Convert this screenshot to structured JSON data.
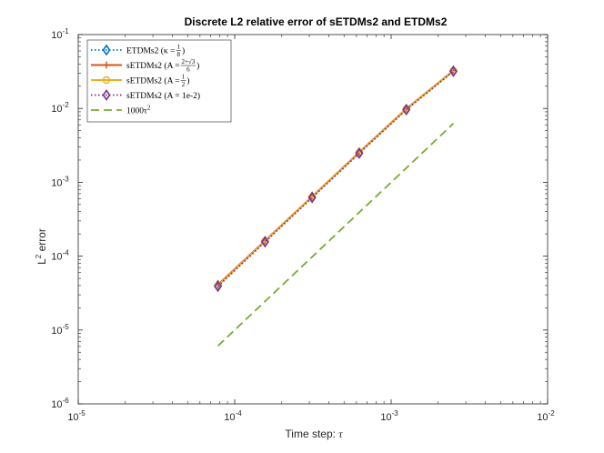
{
  "chart_data": {
    "type": "line",
    "title": "Discrete L2 relative error of sETDMs2 and ETDMs2",
    "xlabel": "Time step: τ",
    "ylabel": "L2 error",
    "xscale": "log",
    "yscale": "log",
    "xlim": [
      1e-05,
      0.01
    ],
    "ylim": [
      1e-06,
      0.1
    ],
    "x_ticks": [
      {
        "base": "10",
        "exp": "-5"
      },
      {
        "base": "10",
        "exp": "-4"
      },
      {
        "base": "10",
        "exp": "-3"
      },
      {
        "base": "10",
        "exp": "-2"
      }
    ],
    "y_ticks": [
      {
        "base": "10",
        "exp": "-6"
      },
      {
        "base": "10",
        "exp": "-5"
      },
      {
        "base": "10",
        "exp": "-4"
      },
      {
        "base": "10",
        "exp": "-3"
      },
      {
        "base": "10",
        "exp": "-2"
      },
      {
        "base": "10",
        "exp": "-1"
      }
    ],
    "grid": false,
    "legend_position": "top-left",
    "x": [
      7.8125e-05,
      0.00015625,
      0.0003125,
      0.000625,
      0.00125,
      0.0025
    ],
    "series": [
      {
        "name": "ETDMs2 (κ = 1/8)",
        "values": [
          4e-05,
          0.000158,
          0.00063,
          0.0025,
          0.0097,
          0.032
        ],
        "color": "#0072BD",
        "dash": "dotted",
        "marker": "diamond"
      },
      {
        "name": "sETDMs2 (A = (2+√3)/6)",
        "values": [
          4.1e-05,
          0.000162,
          0.00064,
          0.00255,
          0.0099,
          0.0325
        ],
        "color": "#D95319",
        "dash": "solid",
        "marker": "plus"
      },
      {
        "name": "sETDMs2 (A = 1/2)",
        "values": [
          4e-05,
          0.00016,
          0.000635,
          0.00252,
          0.0098,
          0.0322
        ],
        "color": "#EDB120",
        "dash": "solid",
        "marker": "circle"
      },
      {
        "name": "sETDMs2 (A = 1e-2)",
        "values": [
          3.9e-05,
          0.000156,
          0.00062,
          0.00247,
          0.0096,
          0.0318
        ],
        "color": "#7E2F8E",
        "dash": "dotted",
        "marker": "diamond"
      },
      {
        "name": "1000τ²",
        "values": [
          6.1e-06,
          2.44e-05,
          9.77e-05,
          0.000391,
          0.00156,
          0.00625
        ],
        "color": "#77AC30",
        "dash": "dashed",
        "marker": "none"
      }
    ],
    "legend": [
      {
        "main": "ETDMs2 (κ = ",
        "frac": [
          "1",
          "8"
        ],
        "tail": ")"
      },
      {
        "main": "sETDMs2 (A = ",
        "frac": [
          "2+√3",
          "6"
        ],
        "tail": ")"
      },
      {
        "main": "sETDMs2 (A = ",
        "frac": [
          "1",
          "2"
        ],
        "tail": ")"
      },
      {
        "main": "sETDMs2 (A = 1e-2)",
        "frac": null,
        "tail": ""
      },
      {
        "main": "1000τ",
        "sup": "2",
        "frac": null,
        "tail": ""
      }
    ]
  }
}
